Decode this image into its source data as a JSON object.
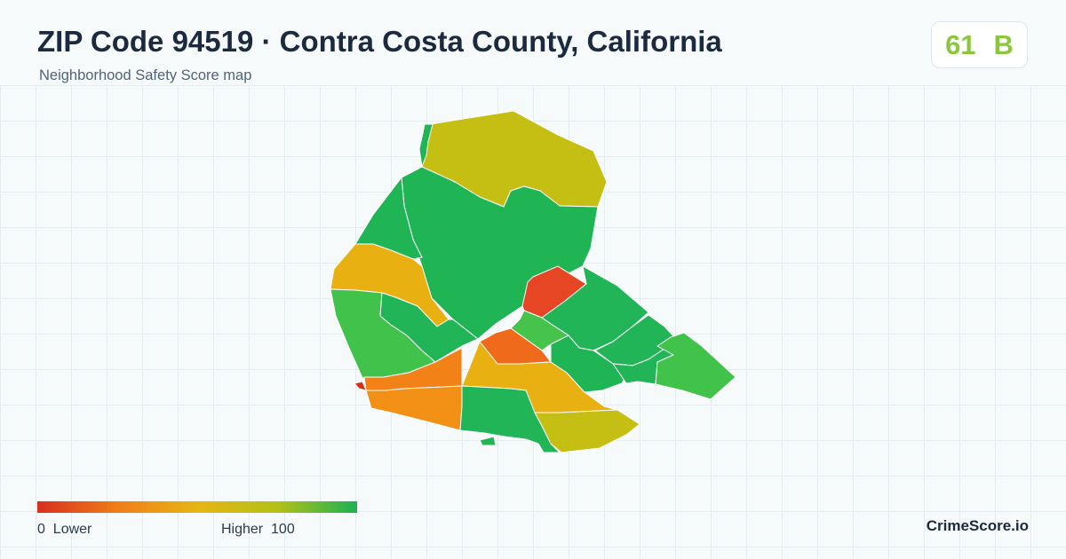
{
  "header": {
    "title": "ZIP Code 94519 · Contra Costa County, California",
    "subtitle": "Neighborhood Safety Score map"
  },
  "score": {
    "value": "61",
    "grade": "B",
    "color": "#8cc63f"
  },
  "legend": {
    "min": "0",
    "min_label": "Lower",
    "max_label": "Higher",
    "max": "100",
    "colors": [
      "#d7301f",
      "#f07d1a",
      "#e6b515",
      "#b4c116",
      "#1bb154"
    ]
  },
  "map": {
    "regions": [
      {
        "id": "north",
        "color": "#c5be13"
      },
      {
        "id": "north-strip",
        "color": "#1fb555"
      },
      {
        "id": "center-large",
        "color": "#1fb555"
      },
      {
        "id": "northwest",
        "color": "#1fb555"
      },
      {
        "id": "west-middle",
        "color": "#e8b111"
      },
      {
        "id": "southwest",
        "color": "#41c24a"
      },
      {
        "id": "west-inner",
        "color": "#22b558"
      },
      {
        "id": "center-red",
        "color": "#e64623"
      },
      {
        "id": "east-large",
        "color": "#22b558"
      },
      {
        "id": "east-inner",
        "color": "#22b558"
      },
      {
        "id": "center-light",
        "color": "#45c34a"
      },
      {
        "id": "center-orange",
        "color": "#f06a1c"
      },
      {
        "id": "south-central",
        "color": "#e8b111"
      },
      {
        "id": "southwest-orange-top",
        "color": "#f28218"
      },
      {
        "id": "southwest-orange",
        "color": "#f29016"
      },
      {
        "id": "south-green",
        "color": "#22b558"
      },
      {
        "id": "south-olive",
        "color": "#c5be13"
      },
      {
        "id": "east-mid",
        "color": "#1fb555"
      },
      {
        "id": "east-connector",
        "color": "#22b558"
      },
      {
        "id": "far-east",
        "color": "#41c24a"
      },
      {
        "id": "small-red",
        "color": "#d7301f"
      },
      {
        "id": "small-piece",
        "color": "#22b558"
      }
    ]
  },
  "brand": {
    "name": "CrimeScore.io"
  }
}
